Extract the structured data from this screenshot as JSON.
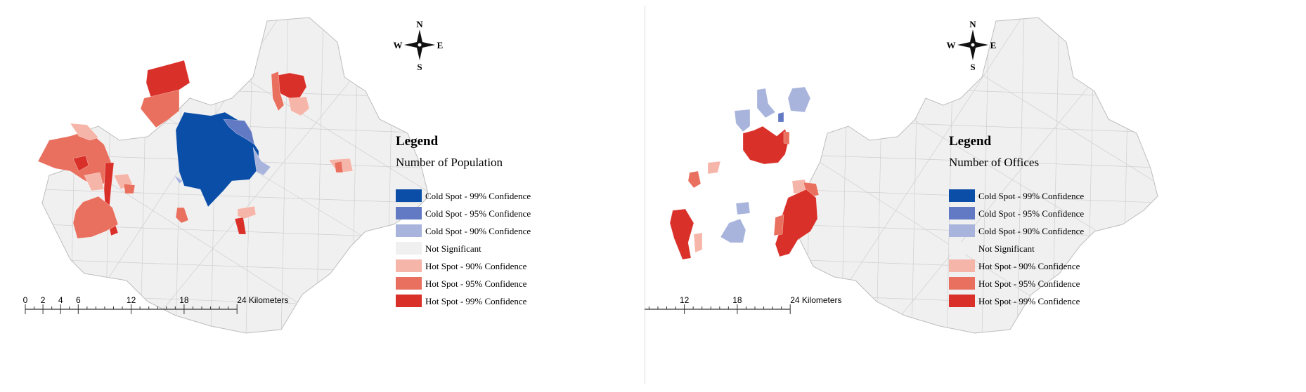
{
  "classes": [
    {
      "label": "Cold Spot - 99% Confidence",
      "color": "#0b4ea8"
    },
    {
      "label": "Cold Spot - 95% Confidence",
      "color": "#6279c4"
    },
    {
      "label": "Cold Spot - 90% Confidence",
      "color": "#a8b4dc"
    },
    {
      "label": "Not Significant",
      "color": "#f0f0f0"
    },
    {
      "label": "Hot Spot - 90% Confidence",
      "color": "#f6b5a9"
    },
    {
      "label": "Hot Spot - 95% Confidence",
      "color": "#e9705f"
    },
    {
      "label": "Hot Spot - 99% Confidence",
      "color": "#d9302a"
    }
  ],
  "compass": {
    "n": "N",
    "s": "S",
    "e": "E",
    "w": "W"
  },
  "scalebar": {
    "ticks": [
      "0",
      "2",
      "4",
      "6",
      "12",
      "18",
      "24 Kilometers"
    ]
  },
  "maps": [
    {
      "legend_title": "Legend",
      "legend_subtitle": "Number of Population"
    },
    {
      "legend_title": "Legend",
      "legend_subtitle": "Number of Offices"
    }
  ]
}
